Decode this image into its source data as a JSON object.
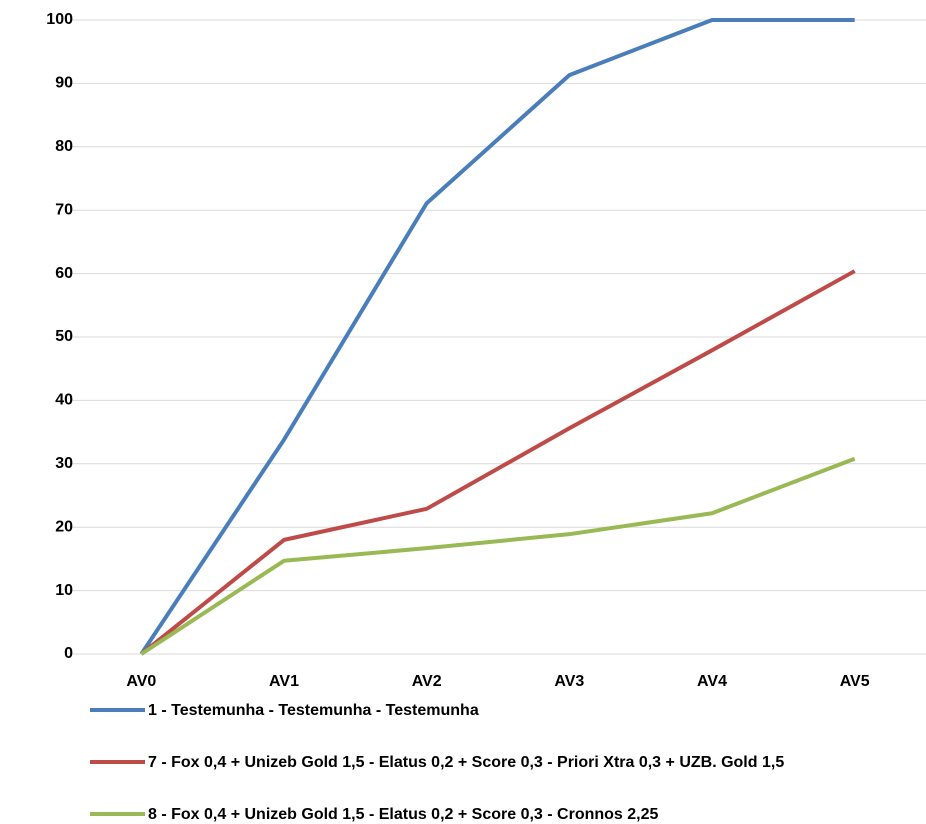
{
  "chart_data": {
    "type": "line",
    "categories": [
      "AV0",
      "AV1",
      "AV2",
      "AV3",
      "AV4",
      "AV5"
    ],
    "series": [
      {
        "name": "1 - Testemunha - Testemunha - Testemunha",
        "color": "#4a7ebb",
        "values": [
          0,
          33.8,
          71.1,
          91.3,
          100,
          100
        ]
      },
      {
        "name": "7 - Fox 0,4 + Unizeb Gold 1,5 - Elatus 0,2 + Score 0,3 - Priori Xtra 0,3 + UZB. Gold 1,5",
        "color": "#be4b48",
        "values": [
          0,
          18.0,
          22.9,
          35.6,
          47.9,
          60.4
        ]
      },
      {
        "name": "8 - Fox 0,4 + Unizeb Gold 1,5 - Elatus 0,2 + Score 0,3 - Cronnos 2,25",
        "color": "#98b954",
        "values": [
          0,
          14.7,
          16.7,
          18.9,
          22.2,
          30.8
        ]
      }
    ],
    "ylim": [
      0,
      100
    ],
    "yticks": [
      0,
      10,
      20,
      30,
      40,
      50,
      60,
      70,
      80,
      90,
      100
    ],
    "grid": true,
    "legend": "bottom"
  }
}
